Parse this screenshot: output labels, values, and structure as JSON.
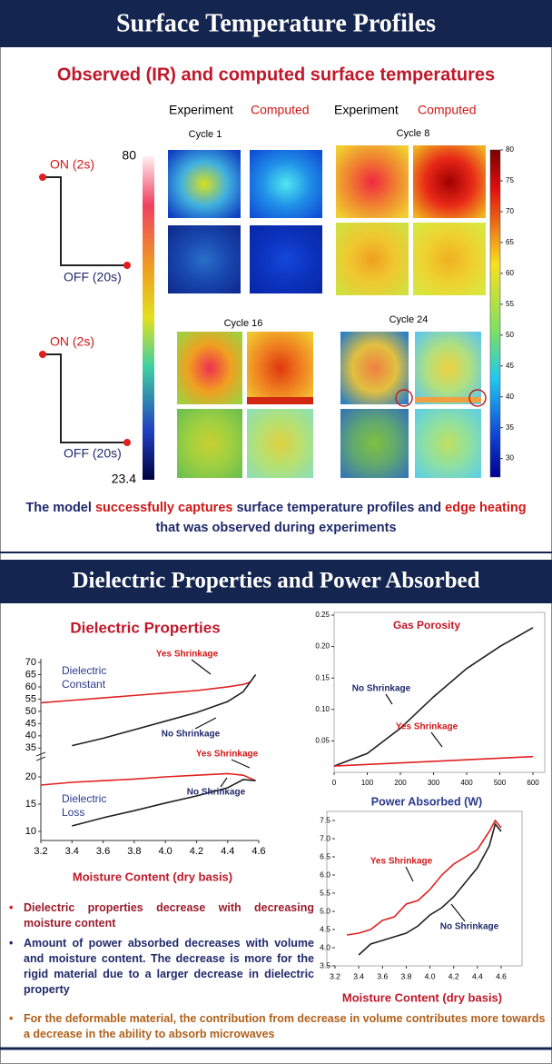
{
  "header1": "Surface Temperature Profiles",
  "subtitle1": "Observed (IR) and computed surface temperatures",
  "column_labels": [
    "Experiment",
    "Computed",
    "Experiment",
    "Computed"
  ],
  "cycles": [
    "Cycle 1",
    "Cycle 8",
    "Cycle 16",
    "Cycle 24"
  ],
  "schedule": [
    {
      "on": "ON (2s)",
      "off": "OFF (20s)"
    },
    {
      "on": "ON (2s)",
      "off": "OFF (20s)"
    }
  ],
  "left_scale": {
    "max": 80,
    "min": 23.4
  },
  "right_scale": {
    "lim": [
      27,
      80
    ],
    "ticks": [
      80,
      75,
      70,
      65,
      60,
      55,
      50,
      45,
      40,
      35,
      30
    ]
  },
  "summary": [
    "The model ",
    "successfully captures",
    " surface temperature profiles and ",
    "edge heating",
    " that was observed during experiments"
  ],
  "header2": "Dielectric Properties and Power Absorbed",
  "bullets": [
    "Dielectric properties decrease with decreasing moisture content",
    "Amount of power absorbed decreases with volume and moisture content. The decrease is more for the rigid material due to a larger decrease in dielectric property",
    "For the deformable material, the contribution from decrease in volume contributes more towards a decrease in the ability to absorb microwaves"
  ],
  "chart_data": [
    {
      "type": "line",
      "title": "Dielectric Properties",
      "x_label": "Moisture Content (dry basis)",
      "xlim": [
        3.2,
        4.6
      ],
      "xticks": [
        3.2,
        3.4,
        3.6,
        3.8,
        {
          "value": 4,
          "label": "4.0"
        },
        4.2,
        4.4,
        4.6
      ],
      "panels": [
        {
          "ylim": [
            34,
            70
          ],
          "yticks": [
            35,
            40,
            45,
            50,
            55,
            60,
            65,
            70
          ]
        },
        {
          "ylim": [
            9,
            22
          ],
          "yticks": [
            10,
            15,
            20
          ]
        }
      ],
      "annotations": [
        "Dielectric Constant",
        "Dielectric Loss"
      ],
      "series": [
        {
          "name": "Yes Shrinkage",
          "color": "#e02020",
          "panel": 0,
          "x": [
            3.2,
            3.4,
            3.6,
            3.8,
            4.0,
            4.2,
            4.4,
            4.5,
            4.55
          ],
          "values": [
            53.5,
            54.5,
            55.5,
            56.5,
            57.5,
            58.5,
            60,
            61,
            62
          ]
        },
        {
          "name": "No Shrinkage",
          "color": "#202020",
          "panel": 0,
          "x": [
            3.4,
            3.6,
            3.8,
            4.0,
            4.2,
            4.4,
            4.5,
            4.58
          ],
          "values": [
            36,
            39,
            42.5,
            46,
            49.5,
            54,
            58,
            65
          ]
        },
        {
          "name": "Yes Shrinkage",
          "color": "#e02020",
          "panel": 1,
          "x": [
            3.2,
            3.4,
            3.6,
            3.8,
            4.0,
            4.2,
            4.4,
            4.5,
            4.58
          ],
          "values": [
            18.5,
            19,
            19.3,
            19.6,
            20,
            20.3,
            20.6,
            20.3,
            19.3
          ]
        },
        {
          "name": "No Shrinkage",
          "color": "#202020",
          "panel": 1,
          "x": [
            3.4,
            3.6,
            3.8,
            4.0,
            4.2,
            4.4,
            4.5,
            4.58
          ],
          "values": [
            11,
            12.5,
            13.8,
            15.2,
            16.5,
            18,
            19.5,
            19.3
          ]
        }
      ]
    },
    {
      "type": "line",
      "title": "Gas Porosity",
      "xlim": [
        0,
        600
      ],
      "xticks": [
        0,
        100,
        200,
        300,
        400,
        500,
        600
      ],
      "ylim": [
        0,
        0.25
      ],
      "yticks": [
        0.05,
        {
          "value": 0.1,
          "label": "0.10"
        },
        0.15,
        {
          "value": 0.2,
          "label": "0.20"
        },
        0.25
      ],
      "series": [
        {
          "name": "No Shrinkage",
          "color": "#202020",
          "x": [
            0,
            100,
            200,
            300,
            400,
            500,
            600
          ],
          "values": [
            0.01,
            0.03,
            0.07,
            0.12,
            0.165,
            0.2,
            0.23
          ]
        },
        {
          "name": "Yes Shrinkage",
          "color": "#e02020",
          "x": [
            0,
            600
          ],
          "values": [
            0.01,
            0.025
          ]
        }
      ]
    },
    {
      "type": "line",
      "title": "Power Absorbed (W)",
      "x_label": "Moisture Content (dry basis)",
      "xlim": [
        3.2,
        4.6
      ],
      "xticks": [
        3.2,
        3.4,
        3.6,
        3.8,
        {
          "value": 4,
          "label": "4.0"
        },
        4.2,
        4.4,
        4.6
      ],
      "ylim": [
        3.5,
        7.5
      ],
      "yticks": [
        3.5,
        {
          "value": 4,
          "label": "4.0"
        },
        4.5,
        {
          "value": 5,
          "label": "5.0"
        },
        5.5,
        {
          "value": 6,
          "label": "6.0"
        },
        6.5,
        {
          "value": 7,
          "label": "7.0"
        },
        7.5
      ],
      "series": [
        {
          "name": "Yes Shrinkage",
          "color": "#e02020",
          "x": [
            3.3,
            3.4,
            3.5,
            3.6,
            3.7,
            3.8,
            3.9,
            4.0,
            4.1,
            4.2,
            4.3,
            4.4,
            4.5,
            4.55,
            4.6
          ],
          "values": [
            4.35,
            4.4,
            4.5,
            4.75,
            4.85,
            5.2,
            5.3,
            5.6,
            6.0,
            6.3,
            6.5,
            6.7,
            7.2,
            7.5,
            7.3
          ]
        },
        {
          "name": "No Shrinkage",
          "color": "#202020",
          "x": [
            3.4,
            3.5,
            3.6,
            3.7,
            3.8,
            3.9,
            4.0,
            4.1,
            4.2,
            4.3,
            4.4,
            4.5,
            4.55,
            4.6
          ],
          "values": [
            3.8,
            4.1,
            4.2,
            4.3,
            4.4,
            4.6,
            4.9,
            5.1,
            5.4,
            5.8,
            6.2,
            6.8,
            7.4,
            7.2
          ]
        }
      ]
    }
  ]
}
